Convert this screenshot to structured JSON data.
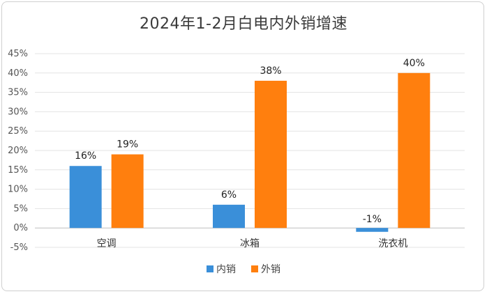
{
  "chart_data": {
    "type": "bar",
    "title": "2024年1-2月白电内外销增速",
    "categories": [
      "空调",
      "冰箱",
      "洗衣机"
    ],
    "series": [
      {
        "name": "内销",
        "values": [
          16,
          6,
          -1
        ],
        "labels": [
          "16%",
          "6%",
          "-1%"
        ],
        "color": "#3A8FD9"
      },
      {
        "name": "外销",
        "values": [
          19,
          38,
          40
        ],
        "labels": [
          "19%",
          "38%",
          "40%"
        ],
        "color": "#FF7F0E"
      }
    ],
    "ylim": [
      -5,
      45
    ],
    "yticks": [
      -5,
      0,
      5,
      10,
      15,
      20,
      25,
      30,
      35,
      40,
      45
    ],
    "ytick_labels": [
      "-5%",
      "0%",
      "5%",
      "10%",
      "15%",
      "20%",
      "25%",
      "30%",
      "35%",
      "40%",
      "45%"
    ],
    "grid": true,
    "legend_position": "bottom"
  }
}
